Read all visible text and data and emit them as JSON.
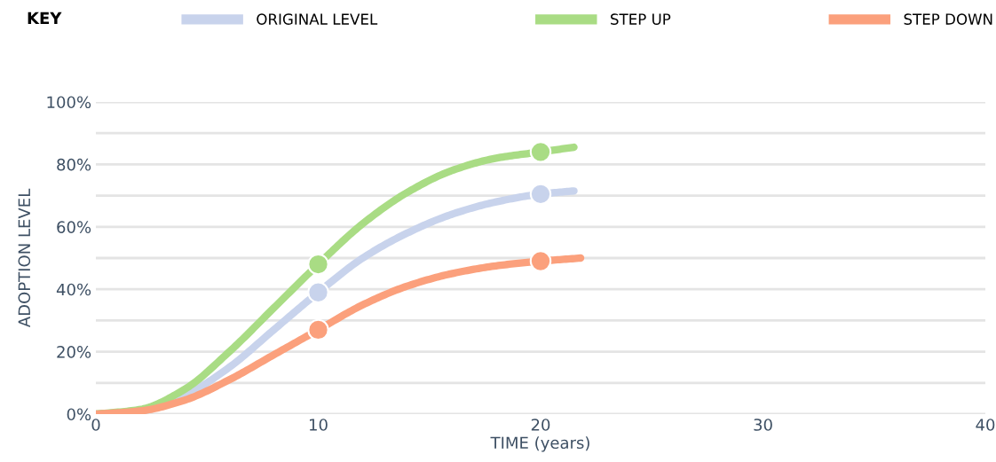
{
  "chart_data": {
    "type": "line",
    "xlabel": "TIME (years)",
    "ylabel": "ADOPTION LEVEL",
    "legend_title": "KEY",
    "legend": "top",
    "xlim": [
      0,
      40
    ],
    "xticks": [
      0,
      10,
      20,
      30,
      40
    ],
    "ylim": [
      0,
      100
    ],
    "yticks": [
      {
        "value": 0,
        "label": "0%"
      },
      {
        "value": 10,
        "label": null
      },
      {
        "value": 20,
        "label": "20%"
      },
      {
        "value": 30,
        "label": null
      },
      {
        "value": 40,
        "label": "40%"
      },
      {
        "value": 50,
        "label": null
      },
      {
        "value": 60,
        "label": "60%"
      },
      {
        "value": 70,
        "label": null
      },
      {
        "value": 80,
        "label": "80%"
      },
      {
        "value": 90,
        "label": null
      },
      {
        "value": 100,
        "label": "100%"
      }
    ],
    "grid": "y",
    "marker": "none",
    "series": [
      {
        "name": "ORIGINAL LEVEL",
        "color": "#c8d3ec",
        "x": [
          0,
          2,
          4,
          6,
          8,
          10,
          12,
          14,
          16,
          18,
          20,
          21.5
        ],
        "values": [
          0,
          1,
          6,
          15,
          27,
          39,
          50,
          58,
          64,
          68,
          70.5,
          71.5
        ]
      },
      {
        "name": "STEP UP",
        "color": "#a9dc84",
        "x": [
          0,
          2,
          4,
          6,
          8,
          10,
          12,
          14,
          16,
          18,
          20,
          21.5
        ],
        "values": [
          0,
          1.5,
          8,
          20,
          34,
          48,
          61,
          71,
          78,
          82,
          84,
          85.5
        ]
      },
      {
        "name": "STEP DOWN",
        "color": "#fba07c",
        "x": [
          0,
          2,
          4,
          6,
          8,
          10,
          12,
          14,
          16,
          18,
          20,
          21.8
        ],
        "values": [
          0,
          1,
          4.5,
          11,
          19,
          27,
          35,
          41,
          45,
          47.5,
          49,
          50
        ]
      },
      {
        "type": "scatter",
        "marker": "circle",
        "color": "#c8d3ec",
        "x": [
          10,
          20
        ],
        "values": [
          39,
          70.5
        ]
      },
      {
        "type": "scatter",
        "marker": "circle",
        "color": "#a9dc84",
        "x": [
          10,
          20
        ],
        "values": [
          48,
          84
        ]
      },
      {
        "type": "scatter",
        "marker": "circle",
        "color": "#fba07c",
        "x": [
          10,
          20
        ],
        "values": [
          27,
          49
        ]
      }
    ]
  }
}
